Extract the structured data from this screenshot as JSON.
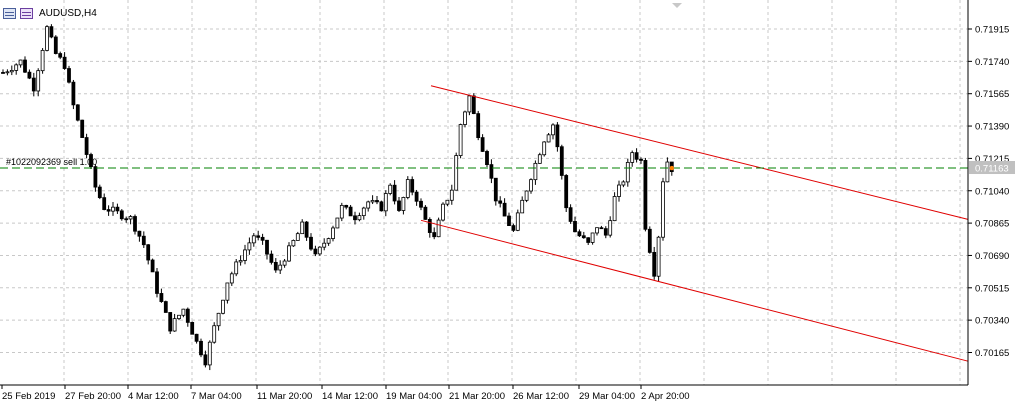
{
  "window": {
    "title": "AUDUSD,H4"
  },
  "symbol_header": {
    "text": "AUDUSD,H4",
    "icons": [
      "chart-window-icon",
      "symbol-properties-icon"
    ]
  },
  "order_line": {
    "label": "#1022092369 sell 1.00",
    "color": "#008000"
  },
  "current_price": {
    "value": "0.71163",
    "color": "#c0c0c0"
  },
  "colors": {
    "channel": "#e00000",
    "grid": "#c8c8c8",
    "candle": "#000000",
    "last_dot": "#ff8000"
  },
  "chart_data": {
    "type": "candlestick",
    "title": "AUDUSD,H4",
    "y_ticks": [
      "0.71915",
      "0.71740",
      "0.71565",
      "0.71390",
      "0.71215",
      "0.71040",
      "0.70865",
      "0.70690",
      "0.70515",
      "0.70340",
      "0.70165"
    ],
    "x_ticks": [
      "25 Feb 2019",
      "27 Feb 20:00",
      "4 Mar 12:00",
      "7 Mar 04:00",
      "11 Mar 20:00",
      "14 Mar 12:00",
      "19 Mar 04:00",
      "21 Mar 20:00",
      "26 Mar 12:00",
      "29 Mar 04:00",
      "2 Apr 20:00"
    ],
    "ylim": [
      0.7008,
      0.7204
    ],
    "grid": true,
    "candle_count": 153,
    "waypoints": [
      [
        0,
        0.7168
      ],
      [
        4,
        0.7174
      ],
      [
        7,
        0.716
      ],
      [
        10,
        0.7192
      ],
      [
        12,
        0.7178
      ],
      [
        14,
        0.7172
      ],
      [
        16,
        0.715
      ],
      [
        18,
        0.7133
      ],
      [
        21,
        0.7106
      ],
      [
        23,
        0.7095
      ],
      [
        26,
        0.7092
      ],
      [
        29,
        0.7089
      ],
      [
        32,
        0.7075
      ],
      [
        35,
        0.705
      ],
      [
        38,
        0.703
      ],
      [
        41,
        0.704
      ],
      [
        44,
        0.7022
      ],
      [
        46,
        0.7012
      ],
      [
        48,
        0.703
      ],
      [
        51,
        0.7055
      ],
      [
        54,
        0.7068
      ],
      [
        57,
        0.708
      ],
      [
        59,
        0.7075
      ],
      [
        62,
        0.706
      ],
      [
        65,
        0.7072
      ],
      [
        68,
        0.7085
      ],
      [
        71,
        0.7068
      ],
      [
        74,
        0.708
      ],
      [
        77,
        0.7095
      ],
      [
        80,
        0.709
      ],
      [
        83,
        0.7098
      ],
      [
        86,
        0.7095
      ],
      [
        88,
        0.7108
      ],
      [
        90,
        0.7092
      ],
      [
        92,
        0.7108
      ],
      [
        94,
        0.71
      ],
      [
        96,
        0.7088
      ],
      [
        98,
        0.7078
      ],
      [
        100,
        0.7095
      ],
      [
        102,
        0.7105
      ],
      [
        104,
        0.714
      ],
      [
        106,
        0.7155
      ],
      [
        108,
        0.7135
      ],
      [
        110,
        0.712
      ],
      [
        112,
        0.71
      ],
      [
        114,
        0.709
      ],
      [
        116,
        0.7082
      ],
      [
        118,
        0.7098
      ],
      [
        120,
        0.7112
      ],
      [
        123,
        0.7132
      ],
      [
        125,
        0.714
      ],
      [
        126,
        0.7128
      ],
      [
        128,
        0.7095
      ],
      [
        130,
        0.7082
      ],
      [
        133,
        0.7075
      ],
      [
        135,
        0.7085
      ],
      [
        137,
        0.708
      ],
      [
        139,
        0.71
      ],
      [
        141,
        0.711
      ],
      [
        143,
        0.7125
      ],
      [
        145,
        0.712
      ],
      [
        146,
        0.7085
      ],
      [
        148,
        0.706
      ],
      [
        149,
        0.708
      ],
      [
        150,
        0.711
      ],
      [
        151,
        0.712
      ],
      [
        152,
        0.7116
      ]
    ],
    "channel": {
      "upper": [
        [
          431,
          0.71608
        ],
        [
          968,
          0.70885
        ]
      ],
      "lower": [
        [
          421,
          0.7088
        ],
        [
          968,
          0.70118
        ]
      ]
    },
    "order_price": 0.71163,
    "last_price": 0.71163
  }
}
